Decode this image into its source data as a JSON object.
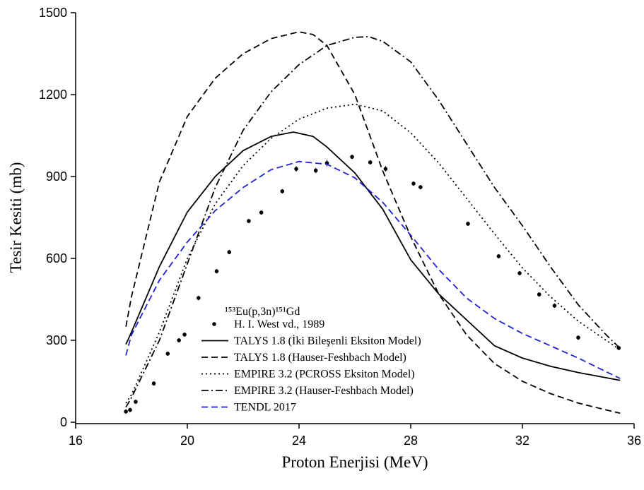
{
  "chart_data": {
    "type": "line",
    "xlabel": "Proton Enerjisi (MeV)",
    "ylabel": "Tesir Kesiti (mb)",
    "legend_title": "¹⁵³Eu(p,3n)¹⁵¹Gd",
    "legend": "lower center",
    "xlim": [
      16,
      36
    ],
    "xticks": [
      16,
      20,
      24,
      28,
      32,
      36
    ],
    "ylim": [
      0,
      1500
    ],
    "yticks": [
      0,
      300,
      600,
      900,
      1200,
      1500
    ],
    "series": [
      {
        "name": "H. I. West vd., 1989",
        "color": "#000000",
        "style": "marker",
        "x": [
          17.8,
          17.95,
          18.15,
          18.8,
          19.3,
          19.7,
          19.9,
          20.4,
          21.05,
          21.5,
          22.2,
          22.65,
          23.4,
          23.9,
          24.6,
          25.0,
          25.9,
          26.55,
          27.1,
          28.1,
          28.35,
          30.05,
          31.15,
          31.9,
          32.6,
          33.15,
          34.0,
          35.45
        ],
        "values": [
          39,
          45,
          75,
          142,
          251,
          300,
          321,
          455,
          553,
          623,
          737,
          768,
          846,
          928,
          922,
          949,
          972,
          952,
          928,
          874,
          861,
          727,
          608,
          546,
          468,
          427,
          310,
          272
        ],
        "errors": [
          8,
          8,
          8,
          8,
          8,
          8,
          8,
          8,
          8,
          8,
          8,
          8,
          8,
          10,
          10,
          12,
          8,
          8,
          10,
          8,
          8,
          8,
          8,
          8,
          8,
          8,
          8,
          8
        ]
      },
      {
        "name": "TALYS 1.8 (İki Bileşenli Eksiton Model)",
        "color": "#000000",
        "style": "solid",
        "x": [
          17.8,
          18,
          19,
          20,
          21,
          22,
          23,
          23.8,
          24.5,
          25,
          26,
          27,
          28,
          29,
          30,
          31,
          32,
          33,
          34,
          35,
          35.5
        ],
        "values": [
          285,
          330,
          570,
          770,
          900,
          995,
          1047,
          1063,
          1047,
          1008,
          913,
          780,
          595,
          470,
          375,
          280,
          235,
          205,
          182,
          163,
          153
        ]
      },
      {
        "name": "TALYS 1.8 (Hauser-Feshbach Model)",
        "color": "#000000",
        "style": "dashed",
        "x": [
          17.8,
          18,
          19,
          20,
          21,
          22,
          23,
          24,
          24.5,
          25,
          26,
          27,
          28,
          29,
          30,
          31,
          32,
          33,
          34,
          35,
          35.5
        ],
        "values": [
          350,
          460,
          880,
          1120,
          1260,
          1350,
          1405,
          1430,
          1420,
          1380,
          1200,
          920,
          680,
          470,
          320,
          215,
          150,
          105,
          70,
          45,
          33
        ]
      },
      {
        "name": "EMPIRE 3.2 (PCROSS Eksiton Model)",
        "color": "#000000",
        "style": "dotted",
        "x": [
          17.8,
          18,
          19,
          20,
          21,
          22,
          23,
          24,
          25,
          26,
          27,
          28,
          29,
          30,
          31,
          32,
          33,
          34,
          35,
          35.5
        ],
        "values": [
          70,
          100,
          330,
          600,
          800,
          940,
          1040,
          1110,
          1150,
          1165,
          1140,
          1060,
          950,
          820,
          690,
          565,
          460,
          370,
          300,
          265
        ]
      },
      {
        "name": "EMPIRE 3.2 (Hauser-Feshbach Model)",
        "color": "#000000",
        "style": "dashdot",
        "x": [
          17.8,
          18,
          19,
          20,
          21,
          22,
          23,
          24,
          25,
          26,
          26.5,
          27,
          28,
          29,
          30,
          31,
          32,
          33,
          34,
          35,
          35.5
        ],
        "values": [
          55,
          90,
          300,
          580,
          860,
          1070,
          1210,
          1310,
          1380,
          1410,
          1412,
          1395,
          1320,
          1180,
          1020,
          860,
          720,
          570,
          430,
          320,
          270
        ]
      },
      {
        "name": "TENDL 2017",
        "color": "#1f1fd6",
        "style": "dashed",
        "x": [
          17.8,
          18,
          19,
          20,
          21,
          22,
          23,
          24,
          25,
          26,
          27,
          28,
          29,
          30,
          31,
          32,
          33,
          34,
          35,
          35.5
        ],
        "values": [
          245,
          320,
          520,
          660,
          775,
          860,
          925,
          955,
          945,
          895,
          805,
          685,
          560,
          455,
          380,
          325,
          280,
          235,
          185,
          160
        ]
      }
    ]
  }
}
